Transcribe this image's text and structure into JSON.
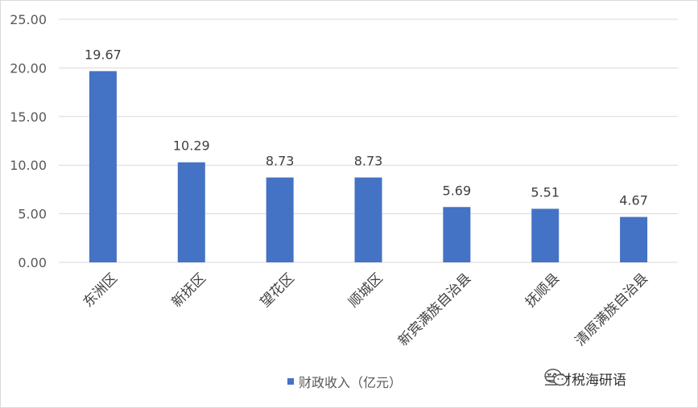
{
  "chart_data": {
    "type": "bar",
    "categories": [
      "东洲区",
      "新抚区",
      "望花区",
      "顺城区",
      "新宾满族自治县",
      "抚顺县",
      "清原满族自治县"
    ],
    "values": [
      19.67,
      10.29,
      8.73,
      8.73,
      5.69,
      5.51,
      4.67
    ],
    "value_labels": [
      "19.67",
      "10.29",
      "8.73",
      "8.73",
      "5.69",
      "5.51",
      "4.67"
    ],
    "ylim": [
      0,
      25
    ],
    "yticks": [
      "0.00",
      "5.00",
      "10.00",
      "15.00",
      "20.00",
      "25.00"
    ],
    "series": [
      {
        "name": "财政收入（亿元）",
        "values": [
          19.67,
          10.29,
          8.73,
          8.73,
          5.69,
          5.51,
          4.67
        ]
      }
    ],
    "grid": true,
    "legend_position": "bottom",
    "bar_color": "#4472c4",
    "grid_color": "#d9d9d9"
  },
  "watermark": {
    "text": "兰财税海研语",
    "icon": "wechat-icon"
  }
}
